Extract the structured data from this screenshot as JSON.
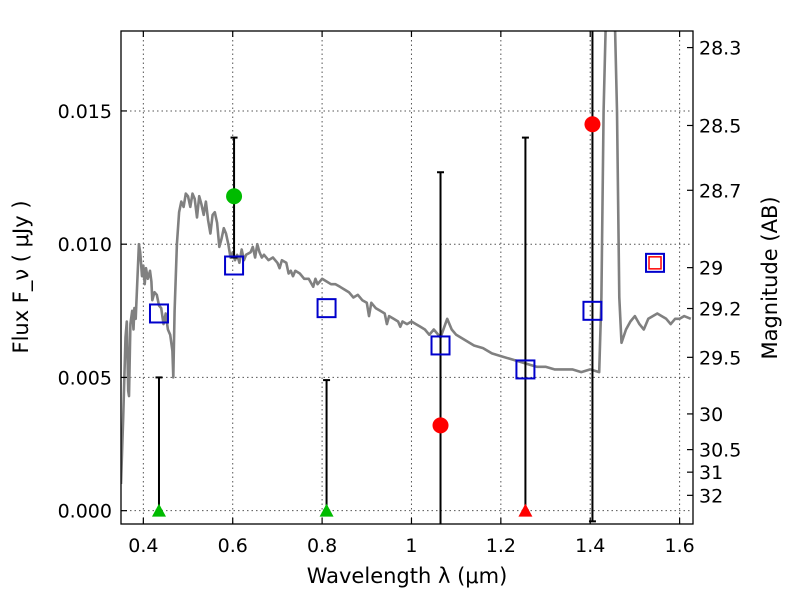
{
  "chart_data": {
    "type": "scatter",
    "title": "",
    "xlabel": "Wavelength  λ (μm)",
    "ylabel": "Flux  F_ν  ( μJy )",
    "y2label": "Magnitude (AB)",
    "xlim": [
      0.35,
      1.63
    ],
    "ylim": [
      -0.0005,
      0.018
    ],
    "grid": true,
    "x_ticks": [
      {
        "value": 0.4,
        "label": "0.4"
      },
      {
        "value": 0.6,
        "label": "0.6"
      },
      {
        "value": 0.8,
        "label": "0.8"
      },
      {
        "value": 1.0,
        "label": "1"
      },
      {
        "value": 1.2,
        "label": "1.2"
      },
      {
        "value": 1.4,
        "label": "1.4"
      },
      {
        "value": 1.6,
        "label": "1.6"
      }
    ],
    "y_ticks": [
      {
        "value": 0.0,
        "label": "0.000"
      },
      {
        "value": 0.005,
        "label": "0.005"
      },
      {
        "value": 0.01,
        "label": "0.010"
      },
      {
        "value": 0.015,
        "label": "0.015"
      }
    ],
    "mag_ticks": [
      {
        "mag": 28.3,
        "label": "28.3"
      },
      {
        "mag": 28.5,
        "label": "28.5"
      },
      {
        "mag": 28.7,
        "label": "28.7"
      },
      {
        "mag": 29.0,
        "label": "29"
      },
      {
        "mag": 29.2,
        "label": "29.2"
      },
      {
        "mag": 29.5,
        "label": "29.5"
      },
      {
        "mag": 30.0,
        "label": "30"
      },
      {
        "mag": 30.5,
        "label": "30.5"
      },
      {
        "mag": 31.0,
        "label": "31"
      },
      {
        "mag": 32.0,
        "label": "32"
      }
    ],
    "colors": {
      "model": "#808080",
      "model_points": "#0000cc",
      "detections": "#ff0000",
      "green": "#00bb00",
      "errorbar": "#000000",
      "grid": "#555555"
    },
    "model_spectrum": [
      [
        0.35,
        0.001
      ],
      [
        0.355,
        0.0035
      ],
      [
        0.36,
        0.0065
      ],
      [
        0.363,
        0.0071
      ],
      [
        0.366,
        0.0045
      ],
      [
        0.368,
        0.0043
      ],
      [
        0.371,
        0.007
      ],
      [
        0.375,
        0.0075
      ],
      [
        0.378,
        0.0068
      ],
      [
        0.38,
        0.0076
      ],
      [
        0.383,
        0.0072
      ],
      [
        0.388,
        0.0092
      ],
      [
        0.39,
        0.01
      ],
      [
        0.393,
        0.0097
      ],
      [
        0.397,
        0.0088
      ],
      [
        0.4,
        0.0092
      ],
      [
        0.403,
        0.0085
      ],
      [
        0.406,
        0.0091
      ],
      [
        0.41,
        0.0087
      ],
      [
        0.415,
        0.009
      ],
      [
        0.418,
        0.0086
      ],
      [
        0.42,
        0.0079
      ],
      [
        0.425,
        0.0082
      ],
      [
        0.43,
        0.0081
      ],
      [
        0.435,
        0.0077
      ],
      [
        0.44,
        0.0076
      ],
      [
        0.445,
        0.007
      ],
      [
        0.45,
        0.0074
      ],
      [
        0.455,
        0.0068
      ],
      [
        0.46,
        0.0066
      ],
      [
        0.465,
        0.006
      ],
      [
        0.467,
        0.005
      ],
      [
        0.47,
        0.0075
      ],
      [
        0.475,
        0.01
      ],
      [
        0.48,
        0.0112
      ],
      [
        0.485,
        0.0116
      ],
      [
        0.49,
        0.0114
      ],
      [
        0.495,
        0.0119
      ],
      [
        0.5,
        0.0118
      ],
      [
        0.505,
        0.0114
      ],
      [
        0.51,
        0.0119
      ],
      [
        0.515,
        0.0117
      ],
      [
        0.52,
        0.011
      ],
      [
        0.525,
        0.0118
      ],
      [
        0.53,
        0.0115
      ],
      [
        0.535,
        0.0111
      ],
      [
        0.54,
        0.0116
      ],
      [
        0.545,
        0.0109
      ],
      [
        0.55,
        0.0104
      ],
      [
        0.555,
        0.0111
      ],
      [
        0.56,
        0.0112
      ],
      [
        0.565,
        0.0108
      ],
      [
        0.57,
        0.0099
      ],
      [
        0.575,
        0.0102
      ],
      [
        0.58,
        0.0106
      ],
      [
        0.585,
        0.0104
      ],
      [
        0.59,
        0.01
      ],
      [
        0.595,
        0.0095
      ],
      [
        0.6,
        0.0097
      ],
      [
        0.605,
        0.0094
      ],
      [
        0.61,
        0.0096
      ],
      [
        0.615,
        0.0093
      ],
      [
        0.62,
        0.0098
      ],
      [
        0.625,
        0.0094
      ],
      [
        0.63,
        0.0096
      ],
      [
        0.64,
        0.0097
      ],
      [
        0.645,
        0.0099
      ],
      [
        0.65,
        0.0095
      ],
      [
        0.655,
        0.01
      ],
      [
        0.66,
        0.0097
      ],
      [
        0.665,
        0.0095
      ],
      [
        0.67,
        0.0096
      ],
      [
        0.68,
        0.0094
      ],
      [
        0.69,
        0.0095
      ],
      [
        0.7,
        0.0093
      ],
      [
        0.705,
        0.0091
      ],
      [
        0.71,
        0.0094
      ],
      [
        0.72,
        0.0093
      ],
      [
        0.725,
        0.0089
      ],
      [
        0.73,
        0.009
      ],
      [
        0.735,
        0.0088
      ],
      [
        0.74,
        0.009
      ],
      [
        0.75,
        0.0089
      ],
      [
        0.76,
        0.0087
      ],
      [
        0.77,
        0.0087
      ],
      [
        0.78,
        0.0084
      ],
      [
        0.785,
        0.0087
      ],
      [
        0.79,
        0.0085
      ],
      [
        0.8,
        0.0087
      ],
      [
        0.81,
        0.0086
      ],
      [
        0.82,
        0.0085
      ],
      [
        0.83,
        0.0085
      ],
      [
        0.84,
        0.0084
      ],
      [
        0.85,
        0.0083
      ],
      [
        0.86,
        0.0082
      ],
      [
        0.87,
        0.008
      ],
      [
        0.88,
        0.0081
      ],
      [
        0.89,
        0.0079
      ],
      [
        0.9,
        0.0078
      ],
      [
        0.905,
        0.0073
      ],
      [
        0.91,
        0.0078
      ],
      [
        0.92,
        0.0076
      ],
      [
        0.93,
        0.0075
      ],
      [
        0.94,
        0.0074
      ],
      [
        0.945,
        0.007
      ],
      [
        0.95,
        0.0073
      ],
      [
        0.96,
        0.0072
      ],
      [
        0.97,
        0.0071
      ],
      [
        0.975,
        0.0069
      ],
      [
        0.98,
        0.0071
      ],
      [
        0.99,
        0.007
      ],
      [
        1.0,
        0.0071
      ],
      [
        1.01,
        0.007
      ],
      [
        1.02,
        0.0069
      ],
      [
        1.03,
        0.0068
      ],
      [
        1.04,
        0.0066
      ],
      [
        1.05,
        0.0068
      ],
      [
        1.06,
        0.0066
      ],
      [
        1.065,
        0.0065
      ],
      [
        1.08,
        0.0072
      ],
      [
        1.09,
        0.0068
      ],
      [
        1.1,
        0.0066
      ],
      [
        1.12,
        0.0064
      ],
      [
        1.14,
        0.0062
      ],
      [
        1.16,
        0.0061
      ],
      [
        1.18,
        0.0059
      ],
      [
        1.2,
        0.0058
      ],
      [
        1.22,
        0.0057
      ],
      [
        1.24,
        0.0056
      ],
      [
        1.26,
        0.0055
      ],
      [
        1.28,
        0.0054
      ],
      [
        1.3,
        0.0054
      ],
      [
        1.32,
        0.0053
      ],
      [
        1.34,
        0.0053
      ],
      [
        1.36,
        0.0053
      ],
      [
        1.38,
        0.0052
      ],
      [
        1.4,
        0.0053
      ],
      [
        1.42,
        0.0052
      ],
      [
        1.425,
        0.008
      ],
      [
        1.43,
        0.015
      ],
      [
        1.435,
        0.0185
      ],
      [
        1.455,
        0.0185
      ],
      [
        1.46,
        0.015
      ],
      [
        1.465,
        0.008
      ],
      [
        1.47,
        0.0063
      ],
      [
        1.48,
        0.0068
      ],
      [
        1.49,
        0.0071
      ],
      [
        1.5,
        0.0073
      ],
      [
        1.51,
        0.007
      ],
      [
        1.52,
        0.0068
      ],
      [
        1.53,
        0.0072
      ],
      [
        1.54,
        0.0073
      ],
      [
        1.55,
        0.0074
      ],
      [
        1.56,
        0.0073
      ],
      [
        1.57,
        0.0072
      ],
      [
        1.58,
        0.007
      ],
      [
        1.59,
        0.0072
      ],
      [
        1.6,
        0.0072
      ],
      [
        1.61,
        0.0073
      ],
      [
        1.625,
        0.0072
      ]
    ],
    "model_points": [
      {
        "x": 0.435,
        "y": 0.0074
      },
      {
        "x": 0.603,
        "y": 0.0092
      },
      {
        "x": 0.81,
        "y": 0.0076
      },
      {
        "x": 1.065,
        "y": 0.0062
      },
      {
        "x": 1.255,
        "y": 0.0053
      },
      {
        "x": 1.405,
        "y": 0.0075
      },
      {
        "x": 1.545,
        "y": 0.0093
      }
    ],
    "errorbars": [
      {
        "x": 0.435,
        "low": 0.0,
        "high": 0.005
      },
      {
        "x": 0.603,
        "low": 0.0095,
        "high": 0.014
      },
      {
        "x": 0.81,
        "low": 0.0,
        "high": 0.0049
      },
      {
        "x": 1.065,
        "low": -0.0006,
        "high": 0.0127
      },
      {
        "x": 1.255,
        "low": 0.0,
        "high": 0.014
      },
      {
        "x": 1.405,
        "low": -0.0004,
        "high": 0.0185
      }
    ],
    "detections": [
      {
        "x": 0.603,
        "y": 0.0118,
        "color": "#00bb00"
      },
      {
        "x": 1.065,
        "y": 0.0032,
        "color": "#ff0000"
      },
      {
        "x": 1.405,
        "y": 0.0145,
        "color": "#ff0000"
      }
    ],
    "upper_limits": [
      {
        "x": 0.435,
        "y": 0.0,
        "color": "#00bb00"
      },
      {
        "x": 0.81,
        "y": 0.0,
        "color": "#00bb00"
      },
      {
        "x": 1.255,
        "y": 0.0,
        "color": "#ff0000"
      }
    ],
    "red_square": {
      "x": 1.545,
      "y": 0.0093
    }
  }
}
